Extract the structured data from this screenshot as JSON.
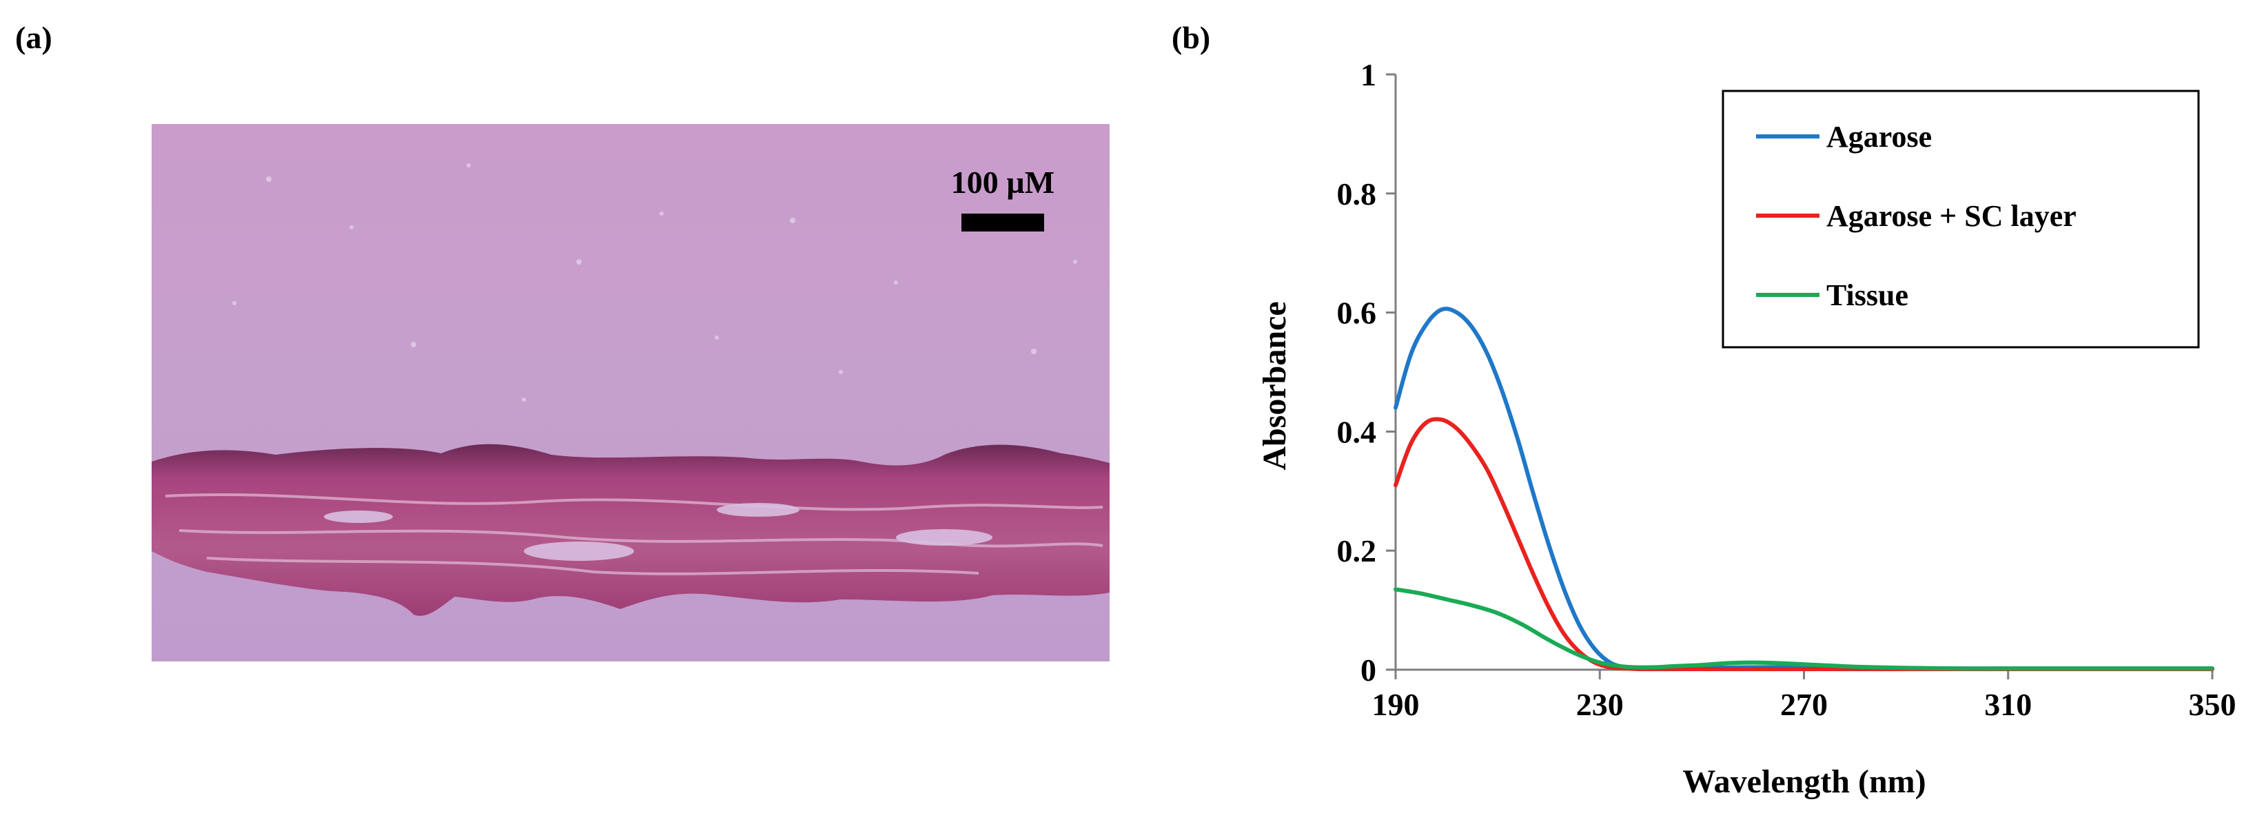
{
  "panels": {
    "a_label": "(a)",
    "b_label": "(b)"
  },
  "micrograph": {
    "scale_bar_label": "100 µM",
    "background_color": "#c7a0c9",
    "tissue_color": "#a94f86"
  },
  "chart_data": {
    "type": "line",
    "title": "",
    "xlabel": "Wavelength (nm)",
    "ylabel": "Absorbance",
    "xlim": [
      190,
      350
    ],
    "ylim": [
      0,
      1
    ],
    "x_ticks": [
      190,
      230,
      270,
      310,
      350
    ],
    "y_ticks": [
      0,
      0.2,
      0.4,
      0.6,
      0.8,
      1
    ],
    "y_tick_labels": [
      "0",
      "0.2",
      "0.4",
      "0.6",
      "0.8",
      "1"
    ],
    "grid": false,
    "legend": "top-right",
    "series": [
      {
        "name": "Agarose",
        "color": "#1f78c8",
        "x": [
          190,
          193,
          196,
          199,
          202,
          205,
          208,
          211,
          214,
          217,
          220,
          223,
          226,
          229,
          232,
          235,
          238,
          241,
          250,
          260,
          270,
          280,
          290,
          300,
          310,
          320,
          330,
          340,
          350
        ],
        "y": [
          0.44,
          0.53,
          0.58,
          0.605,
          0.6,
          0.575,
          0.53,
          0.465,
          0.385,
          0.295,
          0.21,
          0.135,
          0.075,
          0.035,
          0.012,
          0.004,
          0.002,
          0.002,
          0.003,
          0.004,
          0.004,
          0.003,
          0.002,
          0.002,
          0.002,
          0.002,
          0.002,
          0.002,
          0.002
        ]
      },
      {
        "name": "Agarose + SC layer",
        "color": "#e8221e",
        "x": [
          190,
          193,
          196,
          199,
          202,
          205,
          208,
          211,
          214,
          217,
          220,
          223,
          226,
          229,
          232,
          235,
          238,
          241,
          250,
          260,
          270,
          280,
          290,
          300,
          310,
          320,
          330,
          340,
          350
        ],
        "y": [
          0.31,
          0.38,
          0.415,
          0.42,
          0.405,
          0.375,
          0.335,
          0.28,
          0.22,
          0.16,
          0.105,
          0.06,
          0.03,
          0.012,
          0.004,
          0.002,
          0.001,
          0.001,
          0.001,
          0.001,
          0.001,
          0.001,
          0.001,
          0.001,
          0.001,
          0.001,
          0.001,
          0.001,
          0.001
        ]
      },
      {
        "name": "Tissue",
        "color": "#1aaa55",
        "x": [
          190,
          195,
          200,
          205,
          210,
          215,
          220,
          225,
          230,
          235,
          240,
          245,
          250,
          255,
          260,
          265,
          270,
          275,
          280,
          290,
          300,
          310,
          320,
          330,
          340,
          350
        ],
        "y": [
          0.135,
          0.128,
          0.118,
          0.108,
          0.095,
          0.075,
          0.05,
          0.028,
          0.012,
          0.005,
          0.004,
          0.006,
          0.008,
          0.011,
          0.012,
          0.011,
          0.009,
          0.007,
          0.005,
          0.003,
          0.002,
          0.002,
          0.002,
          0.002,
          0.002,
          0.002
        ]
      }
    ]
  }
}
